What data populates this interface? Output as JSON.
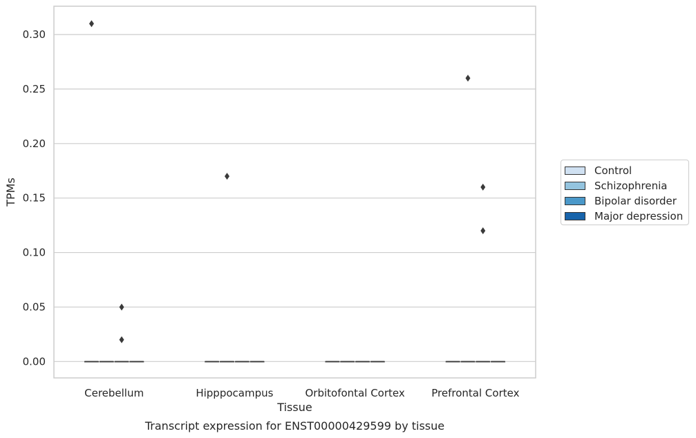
{
  "chart_data": {
    "type": "box",
    "title": "",
    "xlabel": "Tissue",
    "ylabel": "TPMs",
    "caption": "Transcript expression for ENST00000429599 by tissue",
    "categories": [
      "Cerebellum",
      "Hipppocampus",
      "Orbitofontal Cortex",
      "Prefrontal Cortex"
    ],
    "ylim": [
      -0.015,
      0.326
    ],
    "yticks": [
      0.0,
      0.05,
      0.1,
      0.15,
      0.2,
      0.25,
      0.3
    ],
    "ytick_labels": [
      "0.00",
      "0.05",
      "0.10",
      "0.15",
      "0.20",
      "0.25",
      "0.30"
    ],
    "grid": true,
    "legend_position": "right",
    "series": [
      {
        "name": "Control",
        "color": "#d0e1f2",
        "boxes": [
          {
            "category": "Cerebellum",
            "median": 0,
            "q1": 0,
            "q3": 0,
            "whisker_low": 0,
            "whisker_high": 0,
            "outliers": [
              0.31
            ]
          },
          {
            "category": "Hipppocampus",
            "median": 0,
            "q1": 0,
            "q3": 0,
            "whisker_low": 0,
            "whisker_high": 0,
            "outliers": []
          },
          {
            "category": "Orbitofontal Cortex",
            "median": 0,
            "q1": 0,
            "q3": 0,
            "whisker_low": 0,
            "whisker_high": 0,
            "outliers": []
          },
          {
            "category": "Prefrontal Cortex",
            "median": 0,
            "q1": 0,
            "q3": 0,
            "whisker_low": 0,
            "whisker_high": 0,
            "outliers": []
          }
        ]
      },
      {
        "name": "Schizophrenia",
        "color": "#94c4df",
        "boxes": [
          {
            "category": "Cerebellum",
            "median": 0,
            "q1": 0,
            "q3": 0,
            "whisker_low": 0,
            "whisker_high": 0,
            "outliers": []
          },
          {
            "category": "Hipppocampus",
            "median": 0,
            "q1": 0,
            "q3": 0,
            "whisker_low": 0,
            "whisker_high": 0,
            "outliers": [
              0.17
            ]
          },
          {
            "category": "Orbitofontal Cortex",
            "median": 0,
            "q1": 0,
            "q3": 0,
            "whisker_low": 0,
            "whisker_high": 0,
            "outliers": []
          },
          {
            "category": "Prefrontal Cortex",
            "median": 0,
            "q1": 0,
            "q3": 0,
            "whisker_low": 0,
            "whisker_high": 0,
            "outliers": [
              0.26
            ]
          }
        ]
      },
      {
        "name": "Bipolar disorder",
        "color": "#4a98c9",
        "boxes": [
          {
            "category": "Cerebellum",
            "median": 0,
            "q1": 0,
            "q3": 0,
            "whisker_low": 0,
            "whisker_high": 0,
            "outliers": [
              0.05,
              0.02
            ]
          },
          {
            "category": "Hipppocampus",
            "median": 0,
            "q1": 0,
            "q3": 0,
            "whisker_low": 0,
            "whisker_high": 0,
            "outliers": []
          },
          {
            "category": "Orbitofontal Cortex",
            "median": 0,
            "q1": 0,
            "q3": 0,
            "whisker_low": 0,
            "whisker_high": 0,
            "outliers": []
          },
          {
            "category": "Prefrontal Cortex",
            "median": 0,
            "q1": 0,
            "q3": 0,
            "whisker_low": 0,
            "whisker_high": 0,
            "outliers": [
              0.16,
              0.12
            ]
          }
        ]
      },
      {
        "name": "Major depression",
        "color": "#1764ab",
        "boxes": [
          {
            "category": "Cerebellum",
            "median": 0,
            "q1": 0,
            "q3": 0,
            "whisker_low": 0,
            "whisker_high": 0,
            "outliers": []
          },
          {
            "category": "Hipppocampus",
            "median": 0,
            "q1": 0,
            "q3": 0,
            "whisker_low": 0,
            "whisker_high": 0,
            "outliers": []
          },
          {
            "category": "Orbitofontal Cortex",
            "median": 0,
            "q1": 0,
            "q3": 0,
            "whisker_low": 0,
            "whisker_high": 0,
            "outliers": []
          },
          {
            "category": "Prefrontal Cortex",
            "median": 0,
            "q1": 0,
            "q3": 0,
            "whisker_low": 0,
            "whisker_high": 0,
            "outliers": []
          }
        ]
      }
    ]
  }
}
